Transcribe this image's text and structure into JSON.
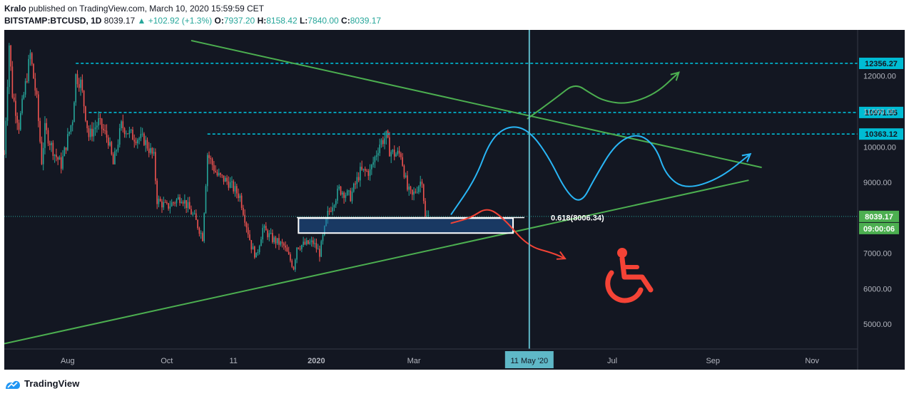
{
  "header": {
    "publisher": "Kralo",
    "published_text": "published on TradingView.com, March 10, 2020 15:59:59 CET",
    "symbol": "BITSTAMP:BTCUSD",
    "interval": "1D",
    "last": "8039.17",
    "change": "▲ +102.92 (+1.3%)",
    "o_label": "O:",
    "o_val": "7937.20",
    "h_label": "H:",
    "h_val": "8158.42",
    "l_label": "L:",
    "l_val": "7840.00",
    "c_label": "C:",
    "c_val": "8039.17"
  },
  "footer": {
    "brand": "TradingView"
  },
  "colors": {
    "background": "#131722",
    "up": "#26a69a",
    "down": "#ef5350",
    "trendline": "#4caf50",
    "level": "#00bcd4",
    "projection": "#29b6f6",
    "crosshair": "#5fb8c7",
    "alert_red": "#f44336"
  },
  "chart_data": {
    "type": "candlestick",
    "y_axis": {
      "min": 4300,
      "max": 13300,
      "ticks": [
        "5000.00",
        "6000.00",
        "7000.00",
        "8000.00",
        "9000.00",
        "10000.00",
        "11000.00",
        "12000.00"
      ],
      "tick_values": [
        5000,
        6000,
        7000,
        8000,
        9000,
        10000,
        11000,
        12000
      ]
    },
    "x_axis": {
      "labels": [
        "Aug",
        "Oct",
        "11",
        "2020",
        "Mar",
        "Jul",
        "Sep",
        "Nov"
      ],
      "label_dates": [
        "2019-08-01",
        "2019-10-01",
        "2019-11-11",
        "2020-01-01",
        "2020-03-01",
        "2020-07-01",
        "2020-09-01",
        "2020-11-01"
      ],
      "start": "2019-06-23",
      "end": "2020-11-29",
      "highlight_label": "11 May '20",
      "highlight_date": "2020-05-11"
    },
    "price_path": [
      [
        "2019-06-23",
        9800
      ],
      [
        "2019-06-26",
        12900
      ],
      [
        "2019-06-28",
        11500
      ],
      [
        "2019-07-02",
        10600
      ],
      [
        "2019-07-09",
        12600
      ],
      [
        "2019-07-13",
        11300
      ],
      [
        "2019-07-16",
        9600
      ],
      [
        "2019-07-18",
        10500
      ],
      [
        "2019-07-24",
        9800
      ],
      [
        "2019-07-28",
        9500
      ],
      [
        "2019-08-04",
        10800
      ],
      [
        "2019-08-06",
        12000
      ],
      [
        "2019-08-09",
        11800
      ],
      [
        "2019-08-14",
        10300
      ],
      [
        "2019-08-20",
        10700
      ],
      [
        "2019-08-26",
        10200
      ],
      [
        "2019-08-29",
        9500
      ],
      [
        "2019-09-03",
        10600
      ],
      [
        "2019-09-10",
        10300
      ],
      [
        "2019-09-17",
        10200
      ],
      [
        "2019-09-23",
        9700
      ],
      [
        "2019-09-25",
        8500
      ],
      [
        "2019-10-01",
        8300
      ],
      [
        "2019-10-10",
        8600
      ],
      [
        "2019-10-18",
        8000
      ],
      [
        "2019-10-23",
        7450
      ],
      [
        "2019-10-26",
        9800
      ],
      [
        "2019-11-01",
        9200
      ],
      [
        "2019-11-08",
        9000
      ],
      [
        "2019-11-15",
        8600
      ],
      [
        "2019-11-22",
        7200
      ],
      [
        "2019-11-25",
        6900
      ],
      [
        "2019-11-29",
        7700
      ],
      [
        "2019-12-05",
        7400
      ],
      [
        "2019-12-12",
        7200
      ],
      [
        "2019-12-18",
        6600
      ],
      [
        "2019-12-20",
        7200
      ],
      [
        "2019-12-30",
        7300
      ],
      [
        "2020-01-03",
        7000
      ],
      [
        "2020-01-08",
        8100
      ],
      [
        "2020-01-15",
        8800
      ],
      [
        "2020-01-22",
        8600
      ],
      [
        "2020-01-28",
        9300
      ],
      [
        "2020-02-03",
        9300
      ],
      [
        "2020-02-09",
        10100
      ],
      [
        "2020-02-13",
        10300
      ],
      [
        "2020-02-15",
        9900
      ],
      [
        "2020-02-18",
        9800
      ],
      [
        "2020-02-22",
        9800
      ],
      [
        "2020-02-26",
        8800
      ],
      [
        "2020-02-29",
        8600
      ],
      [
        "2020-03-06",
        9100
      ],
      [
        "2020-03-08",
        8000
      ],
      [
        "2020-03-10",
        8039
      ]
    ],
    "levels": [
      {
        "price": 12356.27,
        "label": "12356.27",
        "from": "2019-08-06"
      },
      {
        "price": 10971.55,
        "label": "10971.55",
        "from": "2019-08-14"
      },
      {
        "price": 10363.12,
        "label": "10363.12",
        "from": "2019-10-26"
      }
    ],
    "current_price": {
      "label": "8039.17",
      "value": 8039.17,
      "countdown": "09:00:06"
    },
    "fib": {
      "label": "0.618(8006.34)",
      "value": 8006.34
    },
    "zone": {
      "from": "2019-12-21",
      "to": "2020-05-01",
      "top": 7990,
      "bottom": 7570
    },
    "trendlines": [
      {
        "from": [
          "2019-10-16",
          13000
        ],
        "to": [
          "2020-10-01",
          9420
        ]
      },
      {
        "from": [
          "2019-06-23",
          4450
        ],
        "to": [
          "2020-09-23",
          9060
        ]
      }
    ],
    "projection_blue": [
      [
        "2020-03-24",
        8100
      ],
      [
        "2020-04-08",
        9100
      ],
      [
        "2020-04-17",
        10200
      ],
      [
        "2020-04-28",
        10600
      ],
      [
        "2020-05-10",
        10500
      ],
      [
        "2020-05-22",
        9800
      ],
      [
        "2020-06-03",
        8700
      ],
      [
        "2020-06-12",
        8400
      ],
      [
        "2020-06-20",
        9100
      ],
      [
        "2020-07-03",
        10100
      ],
      [
        "2020-07-17",
        10400
      ],
      [
        "2020-07-28",
        10000
      ],
      [
        "2020-08-03",
        9200
      ],
      [
        "2020-08-15",
        8800
      ],
      [
        "2020-09-05",
        9100
      ],
      [
        "2020-09-24",
        9800
      ]
    ],
    "projection_green": [
      [
        "2020-05-10",
        10800
      ],
      [
        "2020-05-28",
        11400
      ],
      [
        "2020-06-08",
        11800
      ],
      [
        "2020-06-18",
        11500
      ],
      [
        "2020-06-26",
        11300
      ],
      [
        "2020-07-10",
        11200
      ],
      [
        "2020-07-28",
        11500
      ],
      [
        "2020-08-11",
        12100
      ]
    ],
    "projection_red": [
      [
        "2020-03-24",
        7850
      ],
      [
        "2020-04-05",
        8000
      ],
      [
        "2020-04-15",
        8300
      ],
      [
        "2020-04-25",
        8000
      ],
      [
        "2020-05-10",
        7200
      ],
      [
        "2020-05-26",
        7000
      ],
      [
        "2020-06-02",
        6850
      ]
    ]
  }
}
